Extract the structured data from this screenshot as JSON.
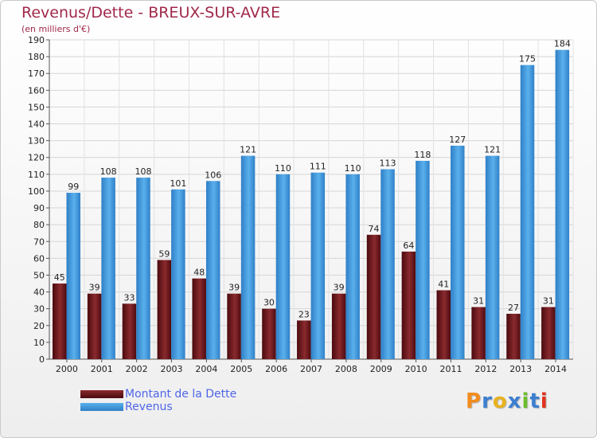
{
  "title": "Revenus/Dette - BREUX-SUR-AVRE",
  "subtitle": "(en milliers d'€)",
  "logo": {
    "text": "Proxiti",
    "letters": [
      "P",
      "r",
      "o",
      "x",
      "i",
      "t",
      "i"
    ]
  },
  "colors": {
    "dette": "#6b1116",
    "revenus": "#3a8fd6",
    "title": "#a0294a",
    "legend_text": "#4f66e8",
    "logo": [
      "#f28c1e",
      "#3d7fd0",
      "#e8b21f",
      "#3d7fd0",
      "#6cbd2b",
      "#3d7fd0",
      "#e0321f"
    ]
  },
  "chart_data": {
    "type": "bar",
    "title": "Revenus/Dette - BREUX-SUR-AVRE",
    "subtitle": "(en milliers d'€)",
    "categories": [
      "2000",
      "2001",
      "2002",
      "2003",
      "2004",
      "2005",
      "2006",
      "2007",
      "2008",
      "2009",
      "2010",
      "2011",
      "2012",
      "2013",
      "2014"
    ],
    "series": [
      {
        "name": "Montant de la Dette",
        "values": [
          45,
          39,
          33,
          59,
          48,
          39,
          30,
          23,
          39,
          74,
          64,
          41,
          31,
          27,
          31
        ]
      },
      {
        "name": "Revenus",
        "values": [
          99,
          108,
          108,
          101,
          106,
          121,
          110,
          111,
          110,
          113,
          118,
          127,
          121,
          175,
          184
        ]
      }
    ],
    "ylim": [
      0,
      190
    ],
    "yticks": [
      0,
      10,
      20,
      30,
      40,
      50,
      60,
      70,
      80,
      90,
      100,
      110,
      120,
      130,
      140,
      150,
      160,
      170,
      180,
      190
    ],
    "grid": true,
    "legend": "bottom-left"
  }
}
